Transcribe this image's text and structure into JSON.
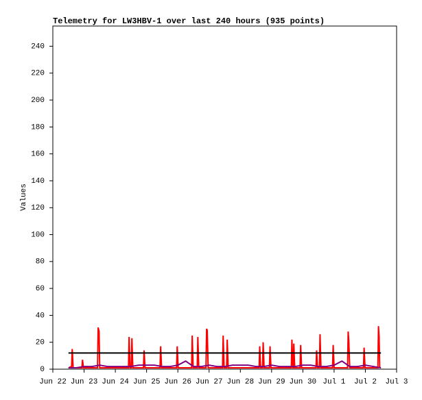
{
  "chart_data": {
    "type": "line",
    "title": "Telemetry for LW3HBV-1 over last 240 hours (935 points)",
    "y_label": "Values",
    "ylim": [
      0,
      255
    ],
    "yticks": [
      0,
      20,
      40,
      60,
      80,
      100,
      120,
      140,
      160,
      180,
      200,
      220,
      240
    ],
    "xlim": [
      0,
      11
    ],
    "xticks": [
      {
        "value": 0,
        "label": "Jun 22"
      },
      {
        "value": 1,
        "label": "Jun 23"
      },
      {
        "value": 2,
        "label": "Jun 24"
      },
      {
        "value": 3,
        "label": "Jun 25"
      },
      {
        "value": 4,
        "label": "Jun 26"
      },
      {
        "value": 5,
        "label": "Jun 27"
      },
      {
        "value": 6,
        "label": "Jun 28"
      },
      {
        "value": 7,
        "label": "Jun 29"
      },
      {
        "value": 8,
        "label": "Jun 30"
      },
      {
        "value": 9,
        "label": "Jul 1"
      },
      {
        "value": 10,
        "label": "Jul 2"
      },
      {
        "value": 11,
        "label": "Jul 3"
      }
    ],
    "series": [
      {
        "color": "#ff0000",
        "x": [
          0.5,
          0.6,
          0.62,
          0.65,
          0.93,
          0.95,
          0.98,
          1.43,
          1.45,
          1.48,
          1.5,
          2.42,
          2.44,
          2.47,
          2.51,
          2.53,
          2.56,
          2.9,
          2.92,
          2.95,
          3.43,
          3.45,
          3.48,
          3.96,
          3.98,
          4.01,
          4.44,
          4.46,
          4.49,
          4.62,
          4.64,
          4.67,
          4.9,
          4.92,
          4.94,
          4.97,
          5.43,
          5.45,
          5.48,
          5.56,
          5.58,
          5.61,
          6.6,
          6.62,
          6.65,
          6.71,
          6.73,
          6.76,
          6.93,
          6.95,
          6.98,
          7.63,
          7.65,
          7.68,
          7.7,
          7.71,
          7.74,
          7.91,
          7.93,
          7.96,
          8.42,
          8.44,
          8.47,
          8.53,
          8.55,
          8.58,
          8.95,
          8.97,
          9.0,
          9.43,
          9.45,
          9.47,
          9.5,
          9.94,
          9.96,
          9.99,
          10.4,
          10.42,
          10.44,
          10.46
        ],
        "values": [
          1,
          2,
          15,
          1,
          1,
          7,
          1,
          1,
          31,
          28,
          1,
          1,
          24,
          1,
          1,
          23,
          1,
          1,
          14,
          1,
          1,
          17,
          1,
          1,
          17,
          1,
          1,
          25,
          1,
          1,
          24,
          1,
          1,
          30,
          29,
          1,
          1,
          25,
          1,
          1,
          22,
          1,
          1,
          17,
          1,
          1,
          20,
          1,
          1,
          17,
          1,
          1,
          22,
          1,
          1,
          19,
          1,
          1,
          18,
          1,
          1,
          14,
          1,
          1,
          26,
          1,
          1,
          18,
          1,
          1,
          28,
          21,
          1,
          1,
          16,
          1,
          1,
          32,
          24,
          1
        ]
      },
      {
        "color": "#800080",
        "x": [
          0.5,
          0.75,
          1,
          1.25,
          1.5,
          1.75,
          2,
          2.25,
          2.5,
          2.75,
          3,
          3.25,
          3.5,
          3.75,
          4,
          4.25,
          4.5,
          4.75,
          5,
          5.25,
          5.5,
          5.75,
          6,
          6.25,
          6.5,
          6.75,
          7,
          7.25,
          7.5,
          7.75,
          8,
          8.25,
          8.5,
          8.75,
          9,
          9.25,
          9.5,
          9.75,
          10,
          10.25,
          10.5
        ],
        "values": [
          1,
          1,
          2,
          2,
          3,
          2,
          2,
          2,
          2,
          3,
          3,
          3,
          2,
          2,
          3,
          6,
          2,
          2,
          3,
          2,
          2,
          3,
          3,
          3,
          2,
          2,
          3,
          2,
          2,
          2,
          3,
          3,
          2,
          2,
          3,
          6,
          2,
          2,
          3,
          2,
          1
        ]
      },
      {
        "color": "#000000",
        "x": [
          0.5,
          10.5
        ],
        "values": [
          12,
          12
        ]
      }
    ]
  }
}
